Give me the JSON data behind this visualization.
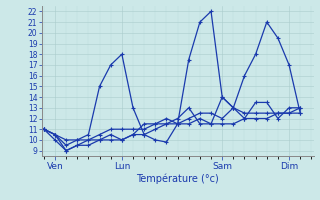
{
  "title": "Température (°c)",
  "bg_color": "#cce8e8",
  "line_color": "#1a3aad",
  "grid_color_major": "#aacccc",
  "grid_color_minor": "#bbdddd",
  "ylim": [
    8.5,
    22.5
  ],
  "yticks": [
    9,
    10,
    11,
    12,
    13,
    14,
    15,
    16,
    17,
    18,
    19,
    20,
    21,
    22
  ],
  "x_tick_labels": [
    "Ven",
    "Lun",
    "Sam",
    "Dim"
  ],
  "x_tick_positions": [
    1,
    7,
    16,
    22
  ],
  "xlim": [
    -0.2,
    24.2
  ],
  "series": [
    [
      11.0,
      10.5,
      9.0,
      9.5,
      10.0,
      10.0,
      10.5,
      10.0,
      10.5,
      11.5,
      11.5,
      12.0,
      11.5,
      12.0,
      12.5,
      12.5,
      12.0,
      13.0,
      12.5,
      12.5,
      12.5,
      12.5,
      12.5,
      13.0
    ],
    [
      11.0,
      10.5,
      9.5,
      10.0,
      10.5,
      15.0,
      17.0,
      18.0,
      13.0,
      10.5,
      10.0,
      9.8,
      11.5,
      17.5,
      21.0,
      22.0,
      14.0,
      13.0,
      16.0,
      18.0,
      21.0,
      19.5,
      17.0,
      12.5
    ],
    [
      11.0,
      10.5,
      10.0,
      10.0,
      10.0,
      10.5,
      11.0,
      11.0,
      11.0,
      11.0,
      11.5,
      11.5,
      12.0,
      13.0,
      11.5,
      11.5,
      14.0,
      13.0,
      12.0,
      13.5,
      13.5,
      12.0,
      13.0,
      13.0
    ],
    [
      11.0,
      10.0,
      9.0,
      9.5,
      9.5,
      10.0,
      10.0,
      10.0,
      10.5,
      10.5,
      11.0,
      11.5,
      11.5,
      11.5,
      12.0,
      11.5,
      11.5,
      11.5,
      12.0,
      12.0,
      12.0,
      12.5,
      12.5,
      12.5
    ]
  ],
  "ylabel_fontsize": 5.5,
  "xlabel_fontsize": 7,
  "xtick_fontsize": 6.5,
  "linewidth": 0.9,
  "marker": "+",
  "markersize": 3.5
}
